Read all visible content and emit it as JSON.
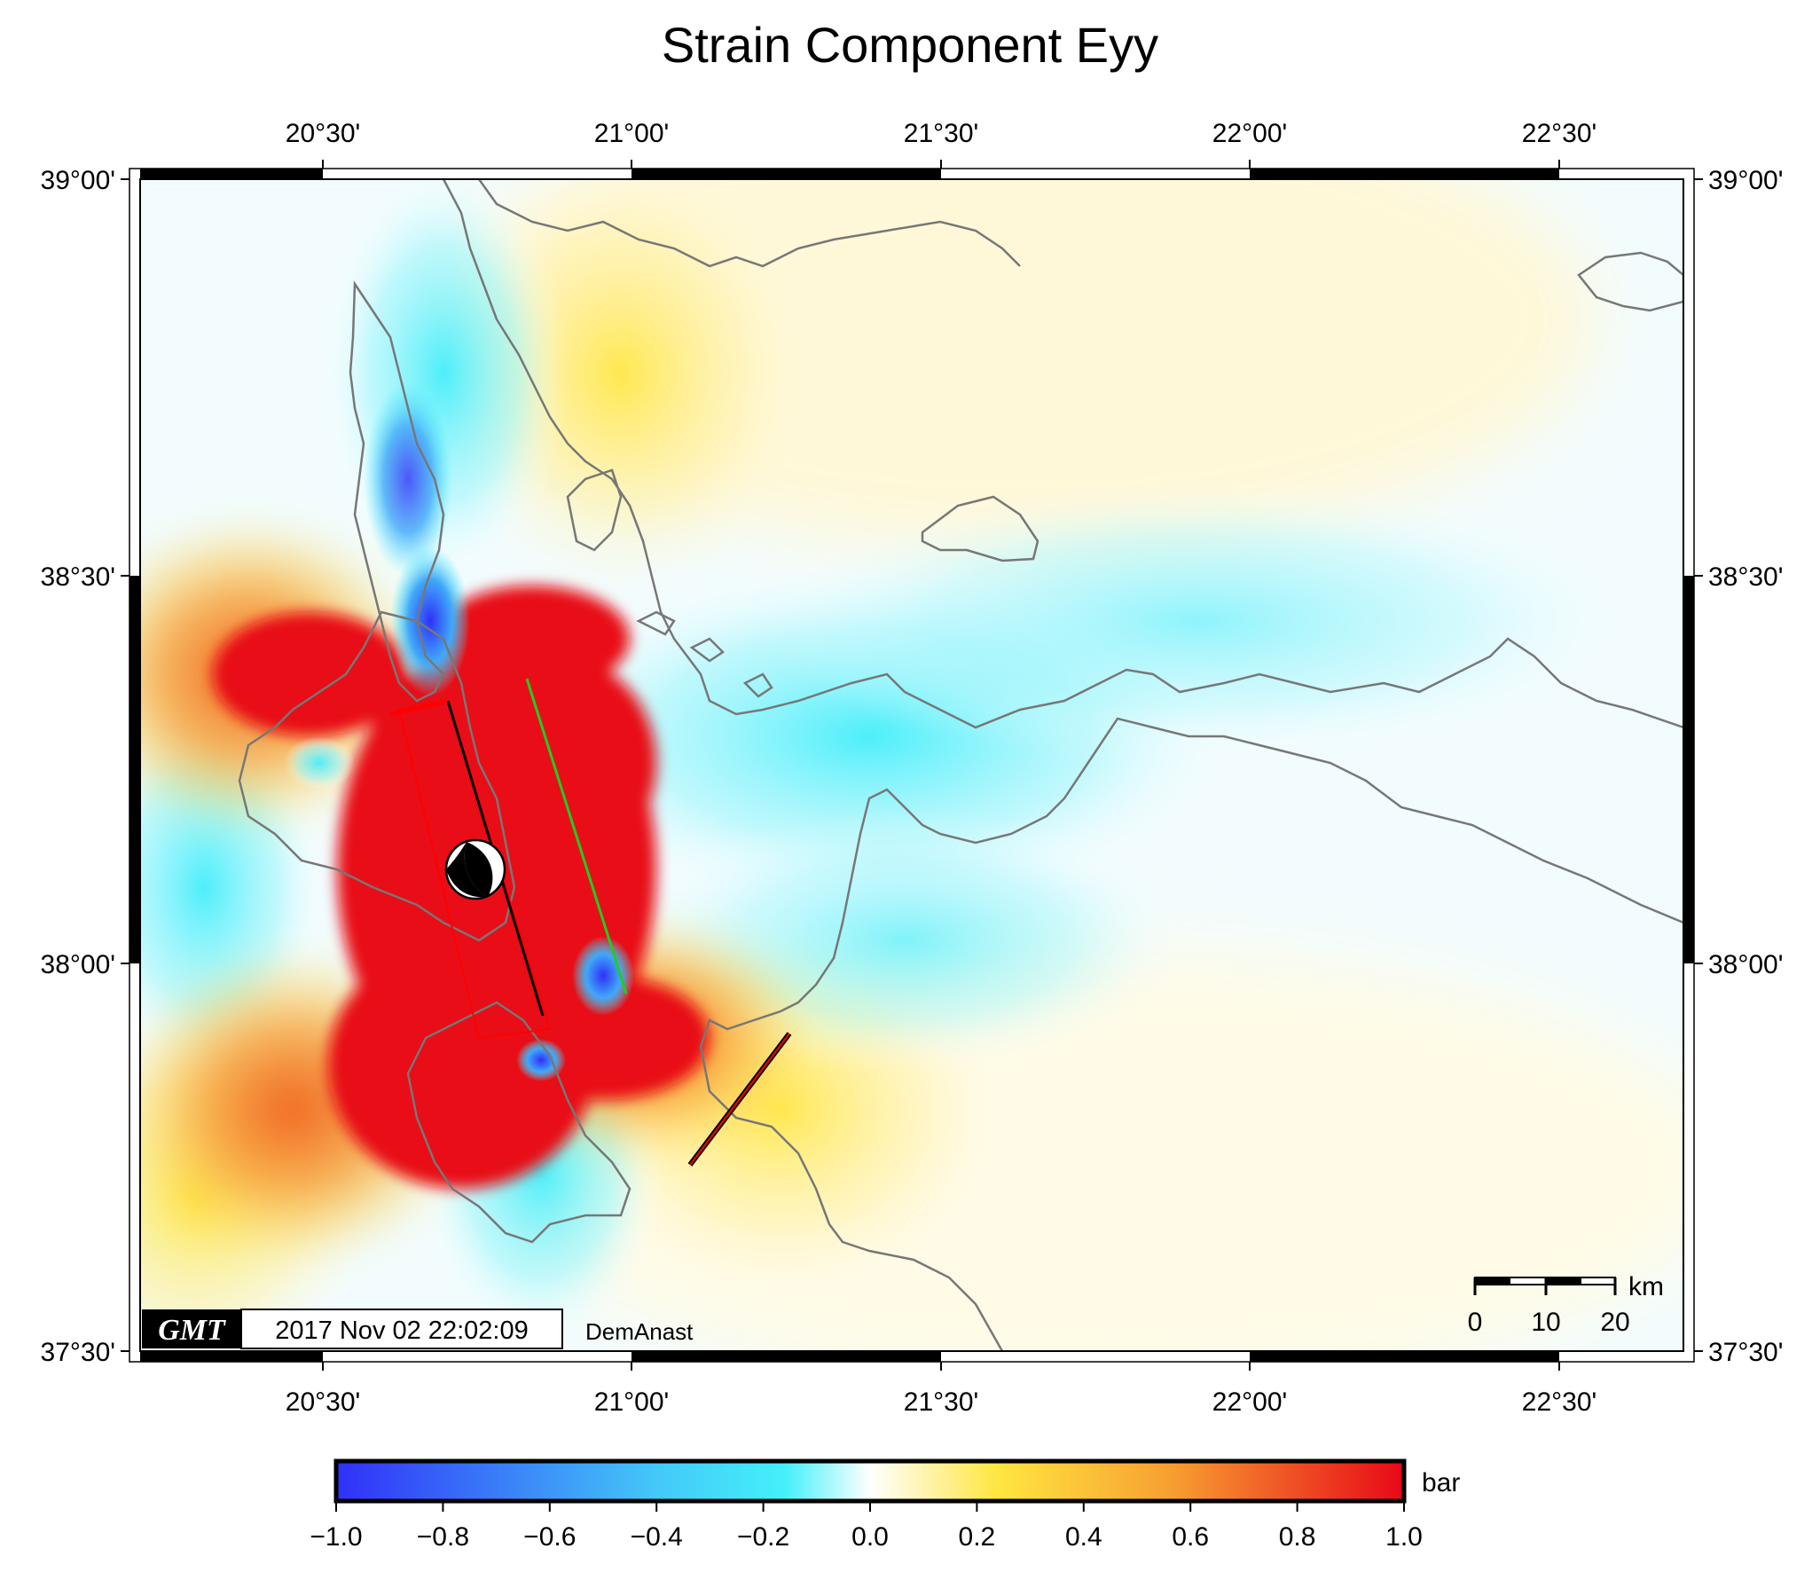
{
  "title": "Strain Component Eyy",
  "map": {
    "lon_ticks": [
      "20°30'",
      "21°00'",
      "21°30'",
      "22°00'",
      "22°30'"
    ],
    "lat_ticks": [
      "39°00'",
      "38°30'",
      "38°00'",
      "37°30'"
    ],
    "lon_range": [
      20.25,
      22.75
    ],
    "lat_range": [
      37.5,
      39.0
    ]
  },
  "colorbar": {
    "unit": "bar",
    "ticks": [
      "−1.0",
      "−0.8",
      "−0.6",
      "−0.4",
      "−0.2",
      "0.0",
      "0.2",
      "0.4",
      "0.6",
      "0.8",
      "1.0"
    ],
    "range": [
      -1.0,
      1.0
    ],
    "colors": [
      "#3030f8",
      "#44c8f8",
      "#44f0fa",
      "#ffffff",
      "#ffe640",
      "#f7a032",
      "#e80818"
    ]
  },
  "scalebar": {
    "unit": "km",
    "ticks": [
      "0",
      "10",
      "20"
    ]
  },
  "stamp": {
    "logo": "GMT",
    "timestamp": "2017 Nov 02 22:02:09",
    "author": "DemAnast"
  },
  "legend_colors": {
    "coast": "#777777",
    "fault_surface_red": "#ff0000",
    "fault_trace_black": "#000000",
    "profile_green": "#22cc22"
  }
}
